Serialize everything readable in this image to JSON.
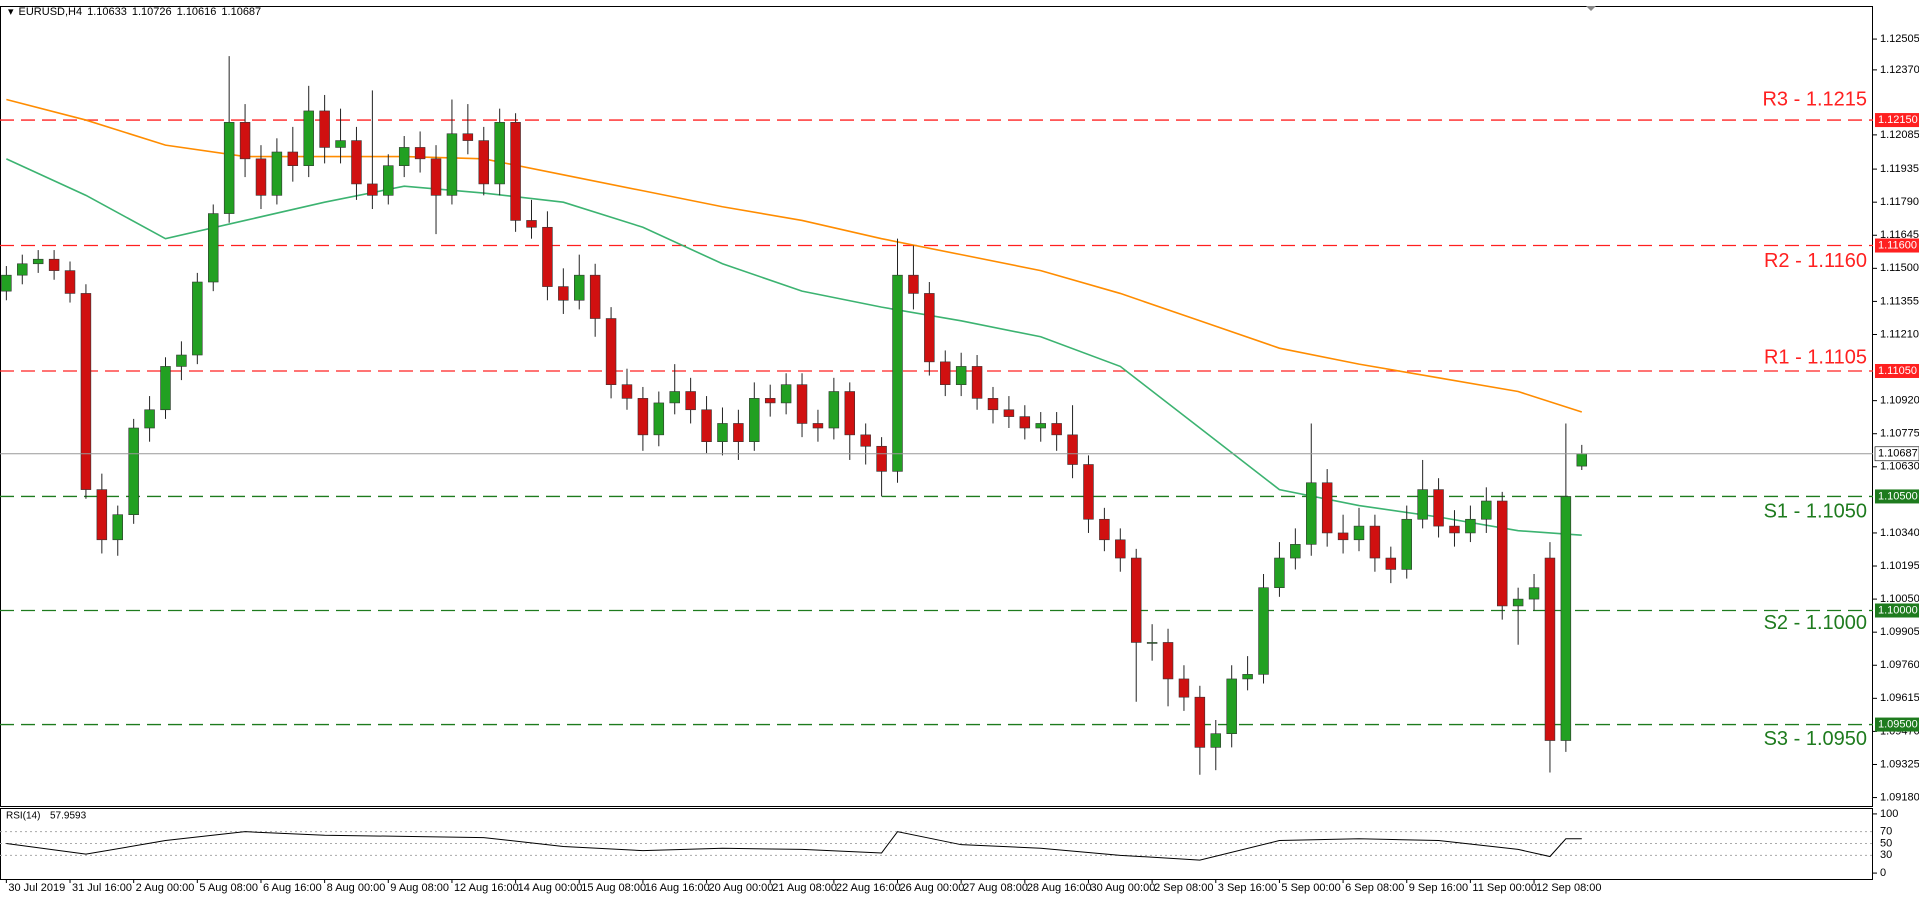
{
  "chart_data": {
    "type": "candlestick",
    "title": "EURUSD,H4",
    "open": [
      1.114,
      1.1147,
      1.1152,
      1.1154,
      1.1149,
      1.1139,
      1.1053,
      1.1031,
      1.1042,
      1.108,
      1.1088,
      1.1107,
      1.1112,
      1.1144,
      1.1174,
      1.1214,
      1.1198,
      1.1182,
      1.1201,
      1.1195,
      1.1219,
      1.1203,
      1.1206,
      1.1187,
      1.1182,
      1.1195,
      1.1203,
      1.1198,
      1.1182,
      1.1209,
      1.1206,
      1.1187,
      1.1214,
      1.1171,
      1.1168,
      1.1142,
      1.1136,
      1.1147,
      1.1128,
      1.1099,
      1.1093,
      1.1077,
      1.1091,
      1.1096,
      1.1088,
      1.1074,
      1.1082,
      1.1074,
      1.1093,
      1.1091,
      1.1099,
      1.1082,
      1.108,
      1.1096,
      1.1077,
      1.1072,
      1.1061,
      1.1147,
      1.1139,
      1.1109,
      1.1099,
      1.1107,
      1.1093,
      1.1088,
      1.1085,
      1.108,
      1.1082,
      1.1077,
      1.1064,
      1.104,
      1.1031,
      1.1023,
      1.0986,
      1.0986,
      1.097,
      1.0962,
      1.094,
      1.0946,
      1.097,
      1.0972,
      1.101,
      1.1023,
      1.1029,
      1.1056,
      1.1034,
      1.1031,
      1.1037,
      1.1023,
      1.1018,
      1.104,
      1.1053,
      1.1037,
      1.1034,
      1.104,
      1.1048,
      1.1002,
      1.1005,
      1.1023,
      1.0943,
      1.10633
    ],
    "high": [
      1.1151,
      1.1156,
      1.1158,
      1.1158,
      1.1153,
      1.1143,
      1.106,
      1.1046,
      1.1084,
      1.1094,
      1.1111,
      1.1118,
      1.1148,
      1.1178,
      1.1243,
      1.1222,
      1.1204,
      1.1207,
      1.1212,
      1.123,
      1.1226,
      1.122,
      1.1212,
      1.1228,
      1.12,
      1.1208,
      1.121,
      1.1204,
      1.1224,
      1.1222,
      1.1212,
      1.122,
      1.1218,
      1.118,
      1.1175,
      1.115,
      1.1156,
      1.1152,
      1.1133,
      1.1106,
      1.1098,
      1.1096,
      1.1108,
      1.1102,
      1.1094,
      1.1089,
      1.1088,
      1.11,
      1.1099,
      1.1104,
      1.1104,
      1.1088,
      1.1102,
      1.11,
      1.1082,
      1.1076,
      1.1163,
      1.116,
      1.1144,
      1.1114,
      1.1113,
      1.1112,
      1.1098,
      1.1094,
      1.109,
      1.1087,
      1.1087,
      1.109,
      1.1068,
      1.1045,
      1.1036,
      1.1027,
      1.0994,
      1.0992,
      1.0976,
      1.0967,
      1.0952,
      1.0976,
      1.098,
      1.1016,
      1.103,
      1.1036,
      1.1082,
      1.1062,
      1.1042,
      1.1045,
      1.1042,
      1.1028,
      1.1046,
      1.1066,
      1.1058,
      1.1044,
      1.1046,
      1.1054,
      1.1052,
      1.101,
      1.1016,
      1.103,
      1.1082,
      1.10726
    ],
    "low": [
      1.1136,
      1.1143,
      1.1148,
      1.1145,
      1.1135,
      1.1049,
      1.1025,
      1.1024,
      1.1038,
      1.1074,
      1.1084,
      1.1101,
      1.1108,
      1.114,
      1.117,
      1.119,
      1.1176,
      1.1178,
      1.1188,
      1.119,
      1.1196,
      1.1196,
      1.118,
      1.1176,
      1.1178,
      1.119,
      1.1192,
      1.1165,
      1.1178,
      1.12,
      1.1182,
      1.1182,
      1.1166,
      1.1163,
      1.1136,
      1.113,
      1.1132,
      1.112,
      1.1093,
      1.1088,
      1.107,
      1.1072,
      1.1086,
      1.1082,
      1.1069,
      1.1068,
      1.1066,
      1.107,
      1.1085,
      1.1086,
      1.1076,
      1.1074,
      1.1075,
      1.1066,
      1.1064,
      1.105,
      1.1056,
      1.1132,
      1.1103,
      1.1094,
      1.1094,
      1.1088,
      1.1082,
      1.108,
      1.1075,
      1.1074,
      1.107,
      1.1058,
      1.1034,
      1.1026,
      1.1017,
      1.096,
      1.0978,
      1.0958,
      1.0956,
      1.0928,
      1.093,
      1.094,
      1.0965,
      1.0968,
      1.1006,
      1.1018,
      1.1024,
      1.1028,
      1.1025,
      1.1026,
      1.1017,
      1.1012,
      1.1014,
      1.1036,
      1.1032,
      1.1028,
      1.103,
      1.1034,
      1.0996,
      1.0985,
      1.1,
      1.0929,
      1.0938,
      1.10616
    ],
    "close": [
      1.1147,
      1.1152,
      1.1154,
      1.1149,
      1.1139,
      1.1053,
      1.1031,
      1.1042,
      1.108,
      1.1088,
      1.1107,
      1.1112,
      1.1144,
      1.1174,
      1.1214,
      1.1198,
      1.1182,
      1.1201,
      1.1195,
      1.1219,
      1.1203,
      1.1206,
      1.1187,
      1.1182,
      1.1195,
      1.1203,
      1.1198,
      1.1182,
      1.1209,
      1.1206,
      1.1187,
      1.1214,
      1.1171,
      1.1168,
      1.1142,
      1.1136,
      1.1147,
      1.1128,
      1.1099,
      1.1093,
      1.1077,
      1.1091,
      1.1096,
      1.1088,
      1.1074,
      1.1082,
      1.1074,
      1.1093,
      1.1091,
      1.1099,
      1.1082,
      1.108,
      1.1096,
      1.1077,
      1.1072,
      1.1061,
      1.1147,
      1.1139,
      1.1109,
      1.1099,
      1.1107,
      1.1093,
      1.1088,
      1.1085,
      1.108,
      1.1082,
      1.1077,
      1.1064,
      1.104,
      1.1031,
      1.1023,
      1.0986,
      1.0986,
      1.097,
      1.0962,
      1.094,
      1.0946,
      1.097,
      1.0972,
      1.101,
      1.1023,
      1.1029,
      1.1056,
      1.1034,
      1.1031,
      1.1037,
      1.1023,
      1.1018,
      1.104,
      1.1053,
      1.1037,
      1.1034,
      1.104,
      1.1048,
      1.1002,
      1.1005,
      1.101,
      1.0943,
      1.105,
      1.10687
    ],
    "up_color": "#22a022",
    "down_color": "#d01010",
    "xlim": [
      -0.4,
      117.3
    ],
    "xticks": [
      {
        "value": 0,
        "label": "30 Jul 2019"
      },
      {
        "value": 4,
        "label": "31 Jul 16:00"
      },
      {
        "value": 8,
        "label": "2 Aug 00:00"
      },
      {
        "value": 12,
        "label": "5 Aug 08:00"
      },
      {
        "value": 16,
        "label": "6 Aug 16:00"
      },
      {
        "value": 20,
        "label": "8 Aug 00:00"
      },
      {
        "value": 24,
        "label": "9 Aug 08:00"
      },
      {
        "value": 28,
        "label": "12 Aug 16:00"
      },
      {
        "value": 32,
        "label": "14 Aug 00:00"
      },
      {
        "value": 36,
        "label": "15 Aug 08:00"
      },
      {
        "value": 40,
        "label": "16 Aug 16:00"
      },
      {
        "value": 44,
        "label": "20 Aug 00:00"
      },
      {
        "value": 48,
        "label": "21 Aug 08:00"
      },
      {
        "value": 52,
        "label": "22 Aug 16:00"
      },
      {
        "value": 56,
        "label": "26 Aug 00:00"
      },
      {
        "value": 60,
        "label": "27 Aug 08:00"
      },
      {
        "value": 64,
        "label": "28 Aug 16:00"
      },
      {
        "value": 68,
        "label": "30 Aug 00:00"
      },
      {
        "value": 72,
        "label": "2 Sep 08:00"
      },
      {
        "value": 76,
        "label": "3 Sep 16:00"
      },
      {
        "value": 80,
        "label": "5 Sep 00:00"
      },
      {
        "value": 84,
        "label": "6 Sep 08:00"
      },
      {
        "value": 88,
        "label": "9 Sep 16:00"
      },
      {
        "value": 92,
        "label": "11 Sep 00:00"
      },
      {
        "value": 96,
        "label": "12 Sep 08:00"
      }
    ],
    "ylim": [
      1.09143,
      1.1265
    ],
    "yticks": [
      1.12505,
      {
        "value": 1.1237,
        "label": "1.12370"
      },
      1.12085,
      1.11935,
      {
        "value": 1.1179,
        "label": "1.11790"
      },
      1.11645,
      {
        "value": 1.115,
        "label": "1.11500"
      },
      1.11355,
      {
        "value": 1.1121,
        "label": "1.11210"
      },
      {
        "value": 1.1092,
        "label": "1.10920"
      },
      1.10775,
      {
        "value": 1.1063,
        "label": "1.10630"
      },
      {
        "value": 1.1034,
        "label": "1.10340"
      },
      1.10195,
      {
        "value": 1.1005,
        "label": "1.10050"
      },
      1.09905,
      {
        "value": 1.0976,
        "label": "1.09760"
      },
      1.09615,
      {
        "value": 1.0947,
        "label": "1.09470"
      },
      1.09325,
      {
        "value": 1.0918,
        "label": "1.09180"
      }
    ],
    "moving_averages": [
      {
        "color": "#ff8c00",
        "x": [
          0,
          5,
          10,
          15,
          20,
          25,
          30,
          35,
          40,
          45,
          50,
          55,
          60,
          65,
          70,
          75,
          80,
          85,
          90,
          95,
          99
        ],
        "values": [
          1.1224,
          1.1215,
          1.1204,
          1.1199,
          1.1199,
          1.1199,
          1.1198,
          1.1191,
          1.1184,
          1.1177,
          1.1171,
          1.1163,
          1.1156,
          1.1149,
          1.1139,
          1.1127,
          1.1115,
          1.1108,
          1.1102,
          1.1096,
          1.1087
        ]
      },
      {
        "color": "#3cb371",
        "x": [
          0,
          5,
          10,
          15,
          20,
          25,
          30,
          35,
          40,
          45,
          50,
          55,
          60,
          65,
          70,
          75,
          80,
          85,
          90,
          95,
          99
        ],
        "values": [
          1.1198,
          1.1182,
          1.1163,
          1.1171,
          1.1179,
          1.1186,
          1.1183,
          1.1179,
          1.1168,
          1.1152,
          1.114,
          1.1133,
          1.1127,
          1.112,
          1.1107,
          1.108,
          1.1053,
          1.1046,
          1.1041,
          1.1035,
          1.1033
        ]
      }
    ],
    "levels": [
      {
        "label": "R3 - 1.1215",
        "value": 1.1215,
        "axis_label": "1.12150",
        "color": "#ff2020"
      },
      {
        "label": "R2 - 1.1160",
        "value": 1.116,
        "axis_label": "1.11600",
        "color": "#ff2020"
      },
      {
        "label": "R1 - 1.1105",
        "value": 1.1105,
        "axis_label": "1.11050",
        "color": "#ff2020"
      },
      {
        "label": "S1 - 1.1050",
        "value": 1.105,
        "axis_label": "1.10500",
        "color": "#1e7b1e"
      },
      {
        "label": "S2 - 1.1000",
        "value": 1.1,
        "axis_label": "1.10000",
        "color": "#1e7b1e"
      },
      {
        "label": "S3 - 1.0950",
        "value": 1.095,
        "axis_label": "1.09500",
        "color": "#1e7b1e"
      }
    ],
    "indicator": {
      "type": "line",
      "name": "RSI(14)",
      "color": "#000000",
      "x": [
        0,
        5,
        10,
        15,
        20,
        25,
        30,
        35,
        40,
        45,
        50,
        55,
        56,
        60,
        65,
        70,
        75,
        80,
        85,
        90,
        95,
        97,
        98,
        99
      ],
      "values": [
        50,
        32,
        55,
        70,
        64,
        62,
        60,
        45,
        38,
        42,
        40,
        34,
        70,
        48,
        42,
        30,
        22,
        55,
        58,
        55,
        40,
        28,
        58,
        57.9593
      ],
      "ylim": [
        -10,
        110
      ],
      "yticks": [
        100,
        70,
        50,
        30,
        0
      ]
    }
  }
}
